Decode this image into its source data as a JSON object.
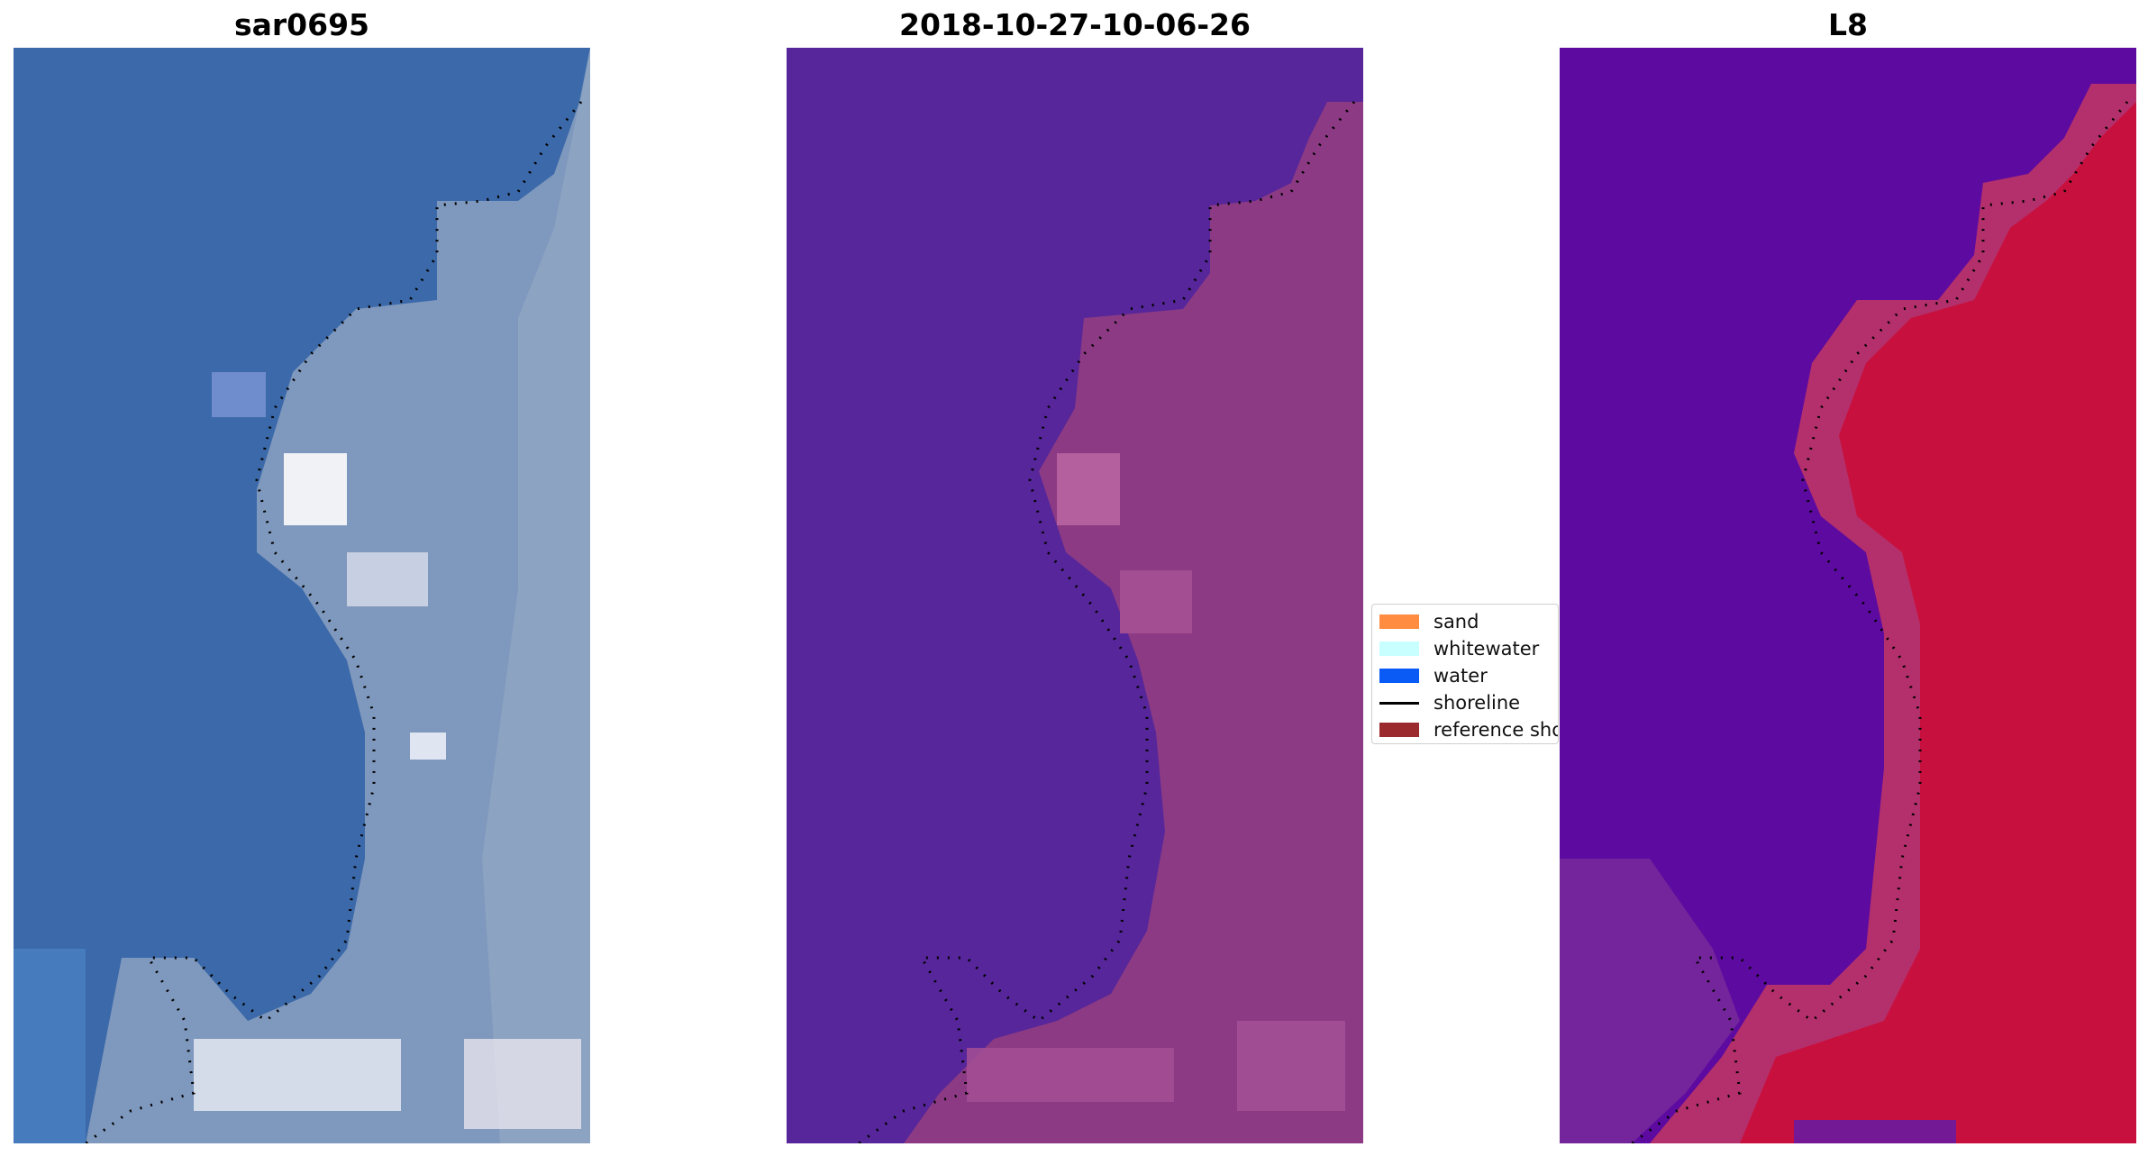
{
  "panels": [
    {
      "title": "sar0695"
    },
    {
      "title": "2018-10-27-10-06-26"
    },
    {
      "title": "L8"
    }
  ],
  "legend": {
    "items": [
      {
        "label": "sand",
        "type": "patch",
        "color": "#ff8c40"
      },
      {
        "label": "whitewater",
        "type": "patch",
        "color": "#c8ffff"
      },
      {
        "label": "water",
        "type": "patch",
        "color": "#0a5af5"
      },
      {
        "label": "shoreline",
        "type": "line",
        "color": "#000000"
      },
      {
        "label": "reference shoreline",
        "type": "patch",
        "color": "#9a2a2e"
      }
    ]
  },
  "colors": {
    "rgb_water": "#3a6aa8",
    "rgb_land": "#8fa3c3",
    "classified_water": "#55259a",
    "classified_land": "#8c3a84",
    "index_water": "#5c0aa0",
    "index_land": "#c8103e"
  }
}
